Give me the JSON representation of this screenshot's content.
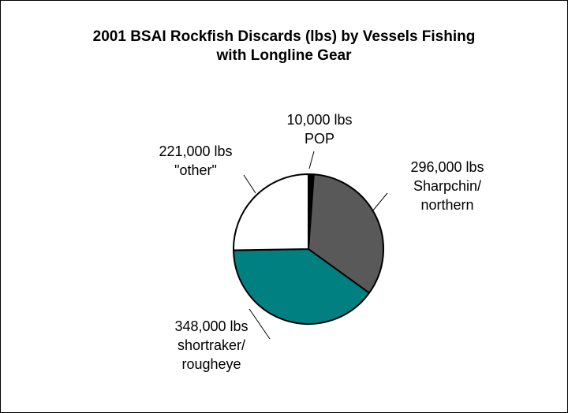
{
  "chart_data": {
    "type": "pie",
    "title": [
      "2001 BSAI Rockfish Discards (lbs) by Vessels Fishing",
      "with Longline Gear"
    ],
    "slices": [
      {
        "value": 10000,
        "label": [
          "10,000 lbs",
          "POP"
        ],
        "color": "#000000"
      },
      {
        "value": 296000,
        "label": [
          "296,000 lbs",
          "Sharpchin/",
          "northern"
        ],
        "color": "#595959"
      },
      {
        "value": 348000,
        "label": [
          "348,000 lbs",
          "shortraker/",
          "rougheye"
        ],
        "color": "#008080"
      },
      {
        "value": 221000,
        "label": [
          "221,000 lbs",
          "\"other\""
        ],
        "color": "#ffffff"
      }
    ],
    "legend": "none",
    "data_labels": "outside with leader lines"
  }
}
